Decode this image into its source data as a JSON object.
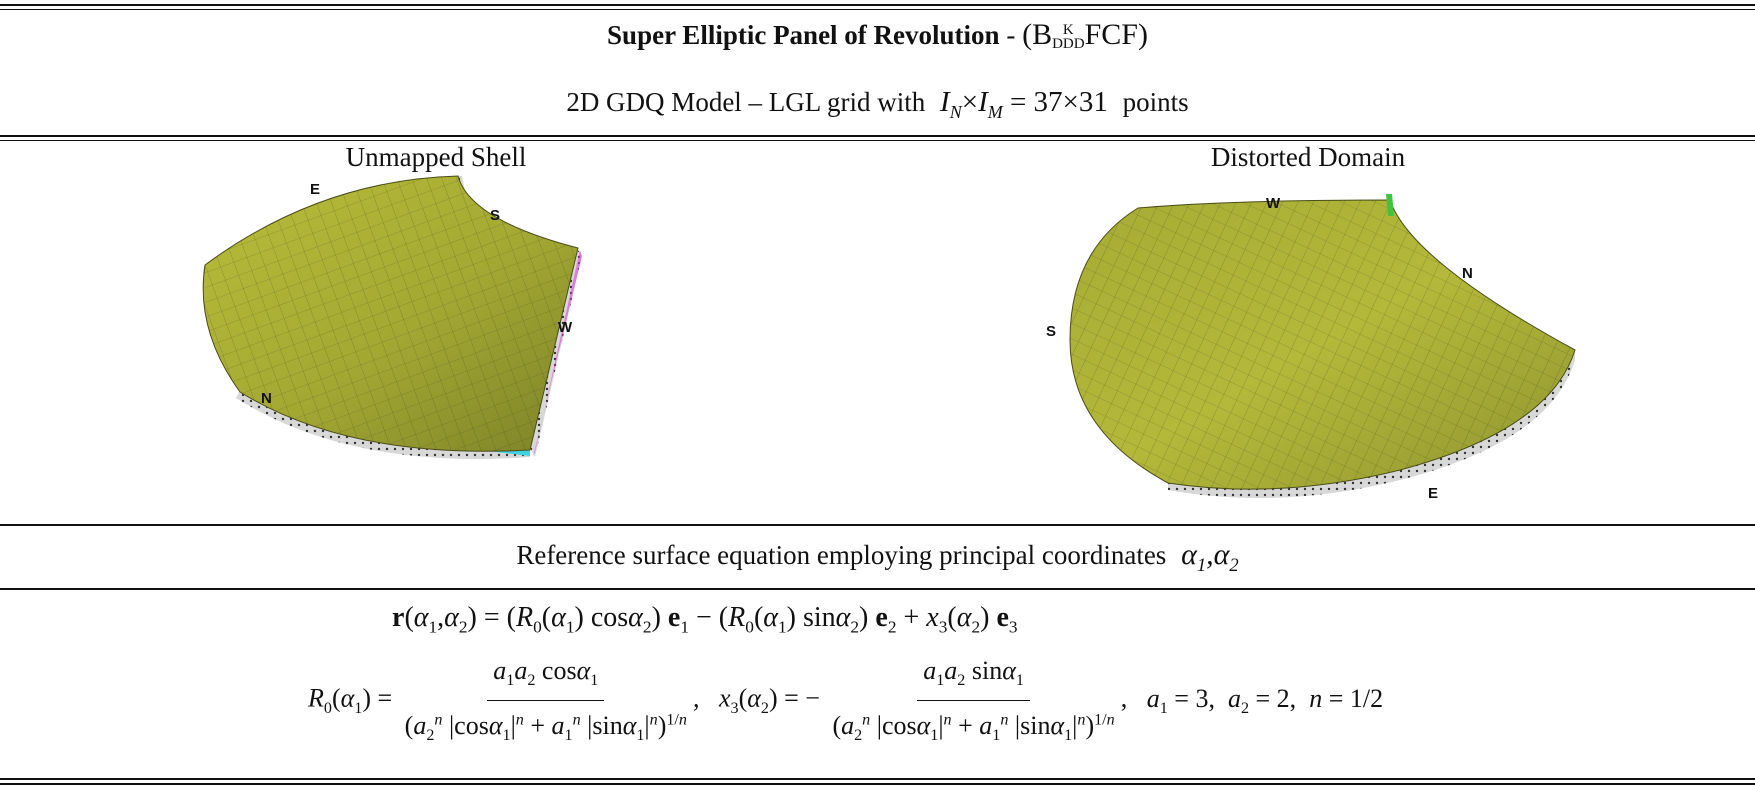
{
  "header": {
    "title_bold": "Super Elliptic Panel of Revolution",
    "title_dash": " - ",
    "title_notation": "(B^K_DDD FCF)",
    "b": "B",
    "k": "K",
    "ddd": "DDD",
    "fcf": "FCF",
    "subtitle_prefix": "2D GDQ Model – LGL grid with",
    "subtitle_math": "I_N×I_M = 37×31",
    "in": "I",
    "in_sub": "N",
    "im": "I",
    "im_sub": "M",
    "times": "×",
    "grid_value": "= 37×31",
    "subtitle_suffix": "points"
  },
  "panels": {
    "left": {
      "title": "Unmapped Shell",
      "edges": {
        "e": "E",
        "s": "S",
        "w": "W",
        "n": "N"
      },
      "colors": {
        "surface": "#a3a833",
        "edge_south_east": "#e040e0",
        "edge_north_east": "#40d0e0"
      }
    },
    "right": {
      "title": "Distorted Domain",
      "edges": {
        "w": "W",
        "n": "N",
        "s": "S",
        "e": "E"
      },
      "colors": {
        "surface": "#a3a833",
        "edge_marker": "#3ec43e"
      }
    }
  },
  "reference": {
    "text": "Reference surface equation employing principal coordinates",
    "coords": "α1, α2"
  },
  "equations": {
    "r_eq": "r(α1,α2) = (R0(α1) cos α2) e1 − (R0(α1) sin α2) e2 + x3(α2) e3",
    "R0_eq": "R0(α1) = a1 a2 cos α1 / (a2^n |cos α1|^n + a1^n |sin α1|^n)^(1/n)",
    "x3_eq": "x3(α2) = − a1 a2 sin α1 / (a2^n |cos α1|^n + a1^n |sin α1|^n)^(1/n)",
    "params": "a1 = 3,  a2 = 2,  n = 1/2"
  }
}
